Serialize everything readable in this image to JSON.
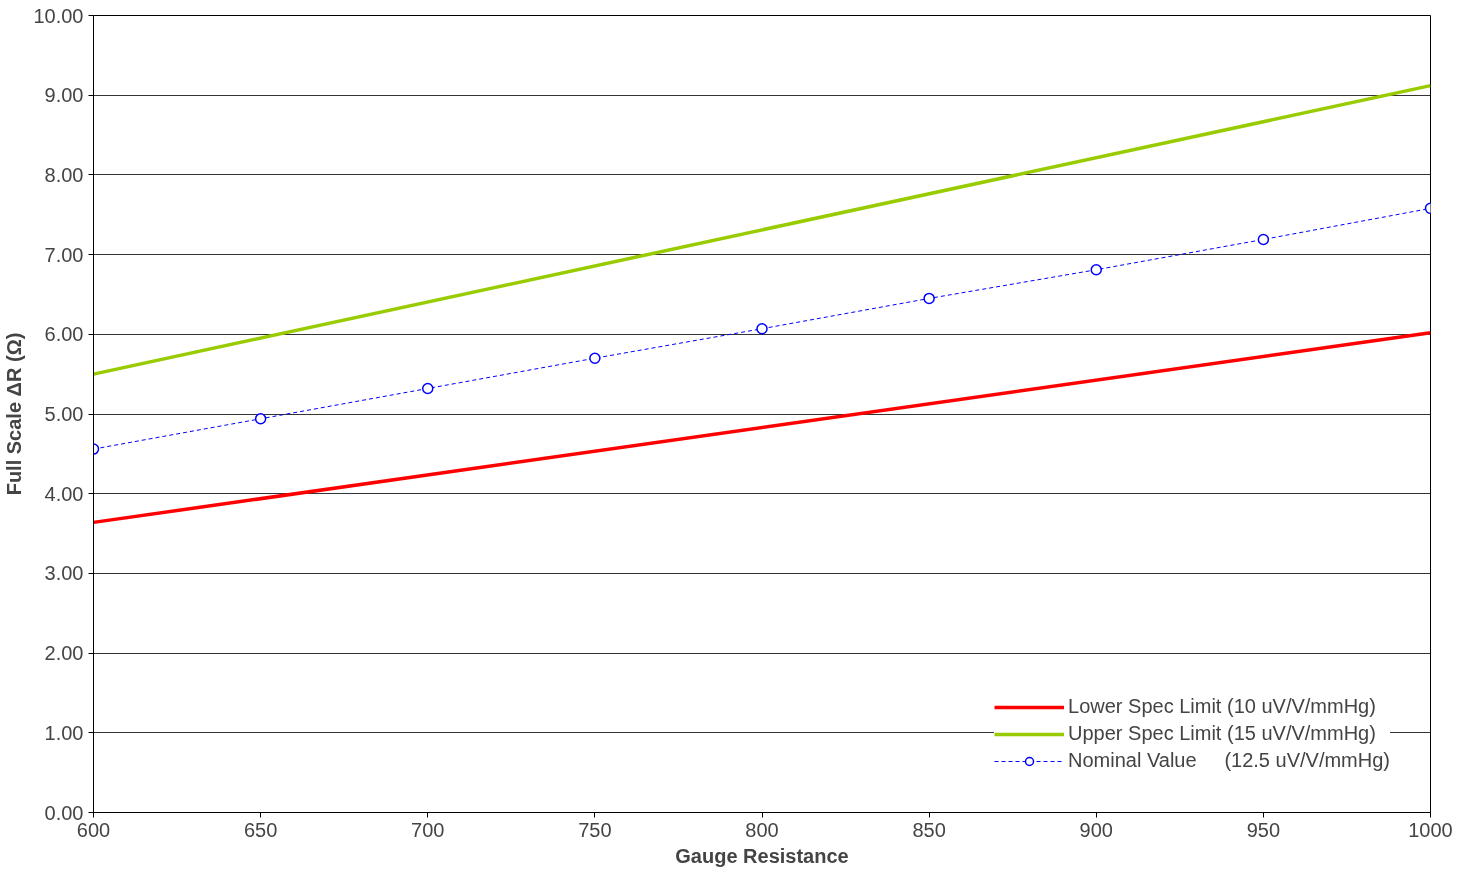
{
  "chart_data": {
    "type": "line",
    "xlabel": "Gauge Resistance",
    "ylabel": "Full Scale ΔR (Ω)",
    "xlim": [
      600,
      1000
    ],
    "xticks": [
      600,
      650,
      700,
      750,
      800,
      850,
      900,
      950,
      1000
    ],
    "ylim": [
      0,
      10
    ],
    "yticks": [
      {
        "value": 0,
        "label": "0.00"
      },
      {
        "value": 1,
        "label": "1.00"
      },
      {
        "value": 2,
        "label": "2.00"
      },
      {
        "value": 3,
        "label": "3.00"
      },
      {
        "value": 4,
        "label": "4.00"
      },
      {
        "value": 5,
        "label": "5.00"
      },
      {
        "value": 6,
        "label": "6.00"
      },
      {
        "value": 7,
        "label": "7.00"
      },
      {
        "value": 8,
        "label": "8.00"
      },
      {
        "value": 9,
        "label": "9.00"
      },
      {
        "value": 10,
        "label": "10.00"
      }
    ],
    "grid": "y",
    "legend": "bottom right",
    "series": [
      {
        "name": "Lower Spec Limit (10 uV/V/mmHg)",
        "color": "#ff0000",
        "x": [
          600,
          1000
        ],
        "values": [
          3.64,
          6.02
        ],
        "line_style": "solid",
        "marker": "none"
      },
      {
        "name": "Upper Spec Limit (15 uV/V/mmHg)",
        "color": "#99cc00",
        "x": [
          600,
          1000
        ],
        "values": [
          5.5,
          9.12
        ],
        "line_style": "solid",
        "marker": "none"
      },
      {
        "name": "Nominal Value     (12.5 uV/V/mmHg)",
        "color": "#0000ff",
        "x": [
          600,
          650,
          700,
          750,
          800,
          850,
          900,
          950,
          1000
        ],
        "values": [
          4.56,
          4.94,
          5.32,
          5.7,
          6.07,
          6.45,
          6.81,
          7.19,
          7.58
        ],
        "line_style": "dashed",
        "marker": "circle"
      }
    ]
  }
}
